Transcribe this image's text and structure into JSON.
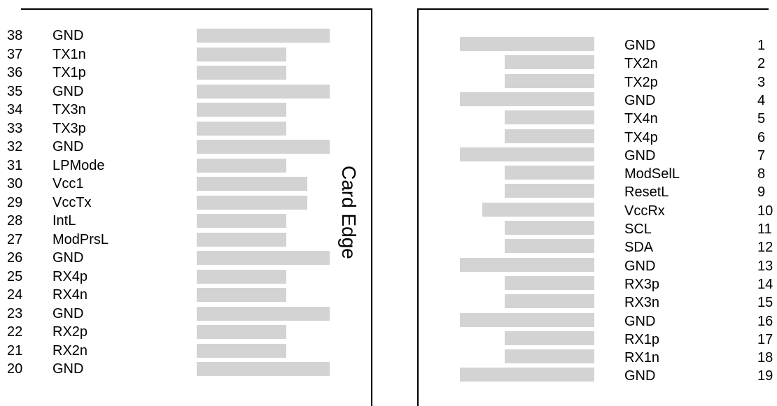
{
  "diagram": {
    "center_label": "Card Edge",
    "pad_color": "#d3d3d3",
    "left_side": [
      {
        "num": "38",
        "name": "GND",
        "long": true
      },
      {
        "num": "37",
        "name": "TX1n",
        "long": false
      },
      {
        "num": "36",
        "name": "TX1p",
        "long": false
      },
      {
        "num": "35",
        "name": "GND",
        "long": true
      },
      {
        "num": "34",
        "name": "TX3n",
        "long": false
      },
      {
        "num": "33",
        "name": "TX3p",
        "long": false
      },
      {
        "num": "32",
        "name": "GND",
        "long": true
      },
      {
        "num": "31",
        "name": "LPMode",
        "long": false
      },
      {
        "num": "30",
        "name": "Vcc1",
        "long": false,
        "medium": true
      },
      {
        "num": "29",
        "name": "VccTx",
        "long": false,
        "medium": true
      },
      {
        "num": "28",
        "name": "IntL",
        "long": false
      },
      {
        "num": "27",
        "name": "ModPrsL",
        "long": false
      },
      {
        "num": "26",
        "name": "GND",
        "long": true
      },
      {
        "num": "25",
        "name": "RX4p",
        "long": false
      },
      {
        "num": "24",
        "name": "RX4n",
        "long": false
      },
      {
        "num": "23",
        "name": "GND",
        "long": true
      },
      {
        "num": "22",
        "name": "RX2p",
        "long": false
      },
      {
        "num": "21",
        "name": "RX2n",
        "long": false
      },
      {
        "num": "20",
        "name": "GND",
        "long": true
      }
    ],
    "right_side": [
      {
        "num": "1",
        "name": "GND",
        "long": true
      },
      {
        "num": "2",
        "name": "TX2n",
        "long": false
      },
      {
        "num": "3",
        "name": "TX2p",
        "long": false
      },
      {
        "num": "4",
        "name": "GND",
        "long": true
      },
      {
        "num": "5",
        "name": "TX4n",
        "long": false
      },
      {
        "num": "6",
        "name": "TX4p",
        "long": false
      },
      {
        "num": "7",
        "name": "GND",
        "long": true
      },
      {
        "num": "8",
        "name": "ModSelL",
        "long": false
      },
      {
        "num": "9",
        "name": "ResetL",
        "long": false
      },
      {
        "num": "10",
        "name": "VccRx",
        "long": false,
        "medium": true
      },
      {
        "num": "11",
        "name": "SCL",
        "long": false
      },
      {
        "num": "12",
        "name": "SDA",
        "long": false
      },
      {
        "num": "13",
        "name": "GND",
        "long": true
      },
      {
        "num": "14",
        "name": "RX3p",
        "long": false
      },
      {
        "num": "15",
        "name": "RX3n",
        "long": false
      },
      {
        "num": "16",
        "name": "GND",
        "long": true
      },
      {
        "num": "17",
        "name": "RX1p",
        "long": false
      },
      {
        "num": "18",
        "name": "RX1n",
        "long": false
      },
      {
        "num": "19",
        "name": "GND",
        "long": true
      }
    ]
  }
}
